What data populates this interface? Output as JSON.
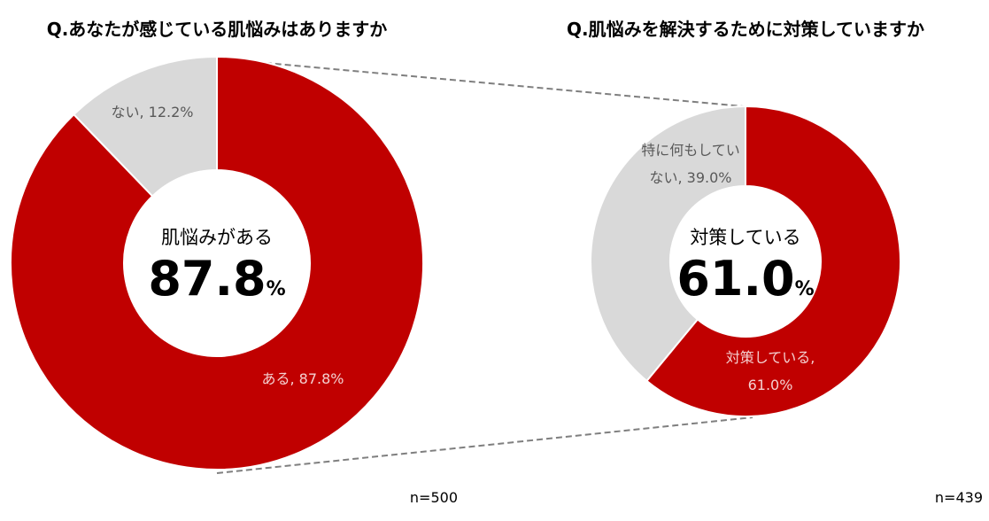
{
  "colors": {
    "primary": "#c00000",
    "secondary": "#d9d9d9",
    "connector": "#7f7f7f"
  },
  "chart_data": [
    {
      "type": "pie",
      "donut": true,
      "title": "Q.あなたが感じている肌悩みはありますか",
      "slices": [
        {
          "label": "ある",
          "value": 87.8,
          "data_label": "ある, 87.8%"
        },
        {
          "label": "ない",
          "value": 12.2,
          "data_label": "ない, 12.2%"
        }
      ],
      "center_caption": "肌悩みがある",
      "center_value": "87.8",
      "center_unit": "%",
      "note": "n=500"
    },
    {
      "type": "pie",
      "donut": true,
      "title": "Q.肌悩みを解決するために対策していますか",
      "slices": [
        {
          "label": "対策している",
          "value": 61.0,
          "data_label_lines": [
            "対策している,",
            "61.0%"
          ]
        },
        {
          "label": "特に何もしていない",
          "value": 39.0,
          "data_label_lines": [
            "特に何もしてい",
            "ない, 39.0%"
          ]
        }
      ],
      "center_caption": "対策している",
      "center_value": "61.0",
      "center_unit": "%",
      "note": "n=439"
    }
  ]
}
